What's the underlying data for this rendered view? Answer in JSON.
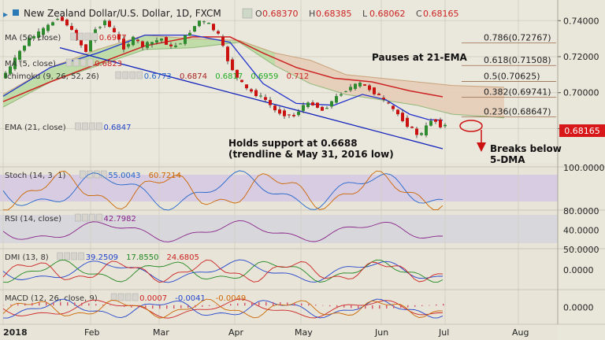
{
  "header": {
    "title": "New Zealand Dollar/U.S. Dollar, 1D, FXCM",
    "ohlc": [
      {
        "label": "O",
        "value": "0.68370"
      },
      {
        "label": "H",
        "value": "0.68385"
      },
      {
        "label": "L",
        "value": "0.68062"
      },
      {
        "label": "C",
        "value": "0.68165"
      }
    ]
  },
  "indicators": [
    {
      "label": "MA (50, close)",
      "values": [
        {
          "v": "0.6977",
          "color": "#cc2222"
        }
      ]
    },
    {
      "label": "MA (5, close)",
      "values": [
        {
          "v": "0.6823",
          "color": "#cc2222"
        }
      ]
    },
    {
      "label": "Ichimoku (9, 26, 52, 26)",
      "values": [
        {
          "v": "0.6773",
          "color": "#2266cc"
        },
        {
          "v": "0.6874",
          "color": "#aa2222"
        },
        {
          "v": "0.6817",
          "color": "#22aa22"
        },
        {
          "v": "0.6959",
          "color": "#22aa22"
        },
        {
          "v": "0.712",
          "color": "#cc2222"
        }
      ]
    },
    {
      "label": "EMA (21, close)",
      "values": [
        {
          "v": "0.6847",
          "color": "#2244cc"
        }
      ]
    }
  ],
  "colors": {
    "up": "#2e8b2e",
    "down": "#cc1111",
    "ema21": "#2233cc",
    "ma50": "#cc2222",
    "trend": "#1122bb",
    "cloud_bull": "#b9dba0",
    "cloud_bear": "#e6cdb8",
    "fib": "#9a6a4a"
  },
  "chart_data": {
    "type": "candlestick",
    "x_labels": [
      "2018",
      "Feb",
      "Mar",
      "Apr",
      "May",
      "Jun",
      "Jul",
      "Aug"
    ],
    "ylim": [
      0.664,
      0.748
    ],
    "y_ticks": [
      "0.74000",
      "0.72000",
      "0.70000",
      "0.68000"
    ],
    "last_price": "0.68165",
    "fib_levels": [
      {
        "label": "0.786(0.72767)",
        "value": 0.72767
      },
      {
        "label": "0.618(0.71508)",
        "value": 0.71508
      },
      {
        "label": "0.5(0.70625)",
        "value": 0.70625
      },
      {
        "label": "0.382(0.69741)",
        "value": 0.69741
      },
      {
        "label": "0.236(0.68647)",
        "value": 0.68647
      }
    ],
    "annotations": {
      "pause": "Pauses at 21-EMA",
      "support": [
        "Holds support at 0.6688",
        "(trendline & May 31, 2016 low)"
      ],
      "breaks": [
        "Breaks below",
        "5-DMA"
      ]
    },
    "path": [
      [
        0,
        0.708
      ],
      [
        4,
        0.714
      ],
      [
        8,
        0.723
      ],
      [
        12,
        0.73
      ],
      [
        16,
        0.733
      ],
      [
        20,
        0.737
      ],
      [
        24,
        0.742
      ],
      [
        28,
        0.738
      ],
      [
        32,
        0.73
      ],
      [
        36,
        0.723
      ],
      [
        40,
        0.735
      ],
      [
        44,
        0.74
      ],
      [
        48,
        0.733
      ],
      [
        52,
        0.725
      ],
      [
        56,
        0.73
      ],
      [
        60,
        0.726
      ],
      [
        64,
        0.728
      ],
      [
        68,
        0.73
      ],
      [
        72,
        0.725
      ],
      [
        76,
        0.728
      ],
      [
        80,
        0.734
      ],
      [
        84,
        0.74
      ],
      [
        88,
        0.738
      ],
      [
        92,
        0.732
      ],
      [
        96,
        0.718
      ],
      [
        100,
        0.708
      ],
      [
        104,
        0.702
      ],
      [
        108,
        0.699
      ],
      [
        112,
        0.696
      ],
      [
        116,
        0.69
      ],
      [
        120,
        0.688
      ],
      [
        124,
        0.687
      ],
      [
        128,
        0.693
      ],
      [
        132,
        0.694
      ],
      [
        136,
        0.69
      ],
      [
        140,
        0.695
      ],
      [
        144,
        0.7
      ],
      [
        148,
        0.703
      ],
      [
        152,
        0.705
      ],
      [
        156,
        0.702
      ],
      [
        160,
        0.698
      ],
      [
        164,
        0.693
      ],
      [
        168,
        0.688
      ],
      [
        172,
        0.682
      ],
      [
        176,
        0.677
      ],
      [
        178,
        0.677
      ],
      [
        180,
        0.681
      ],
      [
        182,
        0.685
      ],
      [
        184,
        0.684
      ],
      [
        186,
        0.6817
      ]
    ],
    "ema21": [
      [
        0,
        0.698
      ],
      [
        20,
        0.714
      ],
      [
        40,
        0.722
      ],
      [
        60,
        0.732
      ],
      [
        80,
        0.732
      ],
      [
        96,
        0.728
      ],
      [
        110,
        0.705
      ],
      [
        124,
        0.694
      ],
      [
        140,
        0.693
      ],
      [
        152,
        0.699
      ],
      [
        162,
        0.696
      ],
      [
        172,
        0.688
      ],
      [
        180,
        0.685
      ],
      [
        186,
        0.6847
      ]
    ],
    "ma50": [
      [
        0,
        0.695
      ],
      [
        20,
        0.706
      ],
      [
        40,
        0.716
      ],
      [
        60,
        0.726
      ],
      [
        80,
        0.731
      ],
      [
        96,
        0.731
      ],
      [
        110,
        0.722
      ],
      [
        124,
        0.714
      ],
      [
        140,
        0.708
      ],
      [
        156,
        0.706
      ],
      [
        172,
        0.701
      ],
      [
        186,
        0.6977
      ]
    ],
    "cloud_upper": [
      [
        0,
        0.699
      ],
      [
        20,
        0.714
      ],
      [
        40,
        0.724
      ],
      [
        60,
        0.732
      ],
      [
        80,
        0.73
      ],
      [
        100,
        0.729
      ],
      [
        115,
        0.722
      ],
      [
        130,
        0.718
      ],
      [
        145,
        0.71
      ],
      [
        160,
        0.708
      ],
      [
        175,
        0.706
      ],
      [
        190,
        0.704
      ],
      [
        212,
        0.703
      ]
    ],
    "cloud_lower": [
      [
        0,
        0.692
      ],
      [
        20,
        0.706
      ],
      [
        40,
        0.715
      ],
      [
        60,
        0.724
      ],
      [
        80,
        0.725
      ],
      [
        100,
        0.728
      ],
      [
        115,
        0.715
      ],
      [
        130,
        0.705
      ],
      [
        145,
        0.699
      ],
      [
        160,
        0.696
      ],
      [
        175,
        0.693
      ],
      [
        190,
        0.688
      ],
      [
        212,
        0.686
      ]
    ],
    "trendline": [
      [
        24,
        0.725
      ],
      [
        186,
        0.6688
      ]
    ],
    "panels": [
      {
        "label": "Stoch (14, 3, 1)",
        "values": [
          {
            "v": "55.0043",
            "color": "#2266cc"
          },
          {
            "v": "60.7214",
            "color": "#cc6600"
          }
        ],
        "axis_top": "100.0000"
      },
      {
        "label": "RSI (14, close)",
        "values": [
          {
            "v": "42.7982",
            "color": "#882288"
          }
        ],
        "axis_top": "80.0000",
        "axis_mid": "40.0000"
      },
      {
        "label": "DMI (13, 8)",
        "values": [
          {
            "v": "39.2509",
            "color": "#2244cc"
          },
          {
            "v": "17.8550",
            "color": "#228822"
          },
          {
            "v": "24.6805",
            "color": "#cc2222"
          }
        ],
        "axis_top": "50.0000",
        "axis_mid": "0.0000"
      },
      {
        "label": "MACD (12, 26, close, 9)",
        "values": [
          {
            "v": "0.0007",
            "color": "#cc2222"
          },
          {
            "v": "-0.0041",
            "color": "#2244cc"
          },
          {
            "v": "-0.0049",
            "color": "#cc6600"
          }
        ],
        "axis_mid": "0.0000"
      }
    ]
  }
}
